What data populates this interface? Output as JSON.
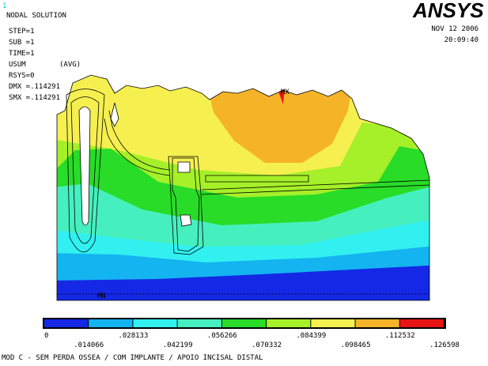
{
  "window_number": "1",
  "header": {
    "title": "NODAL SOLUTION",
    "lines": [
      "STEP=1",
      "SUB =1",
      "TIME=1",
      "USUM",
      "RSYS=0",
      "DMX =.114291",
      "SMX =.114291"
    ],
    "avg": "(AVG)"
  },
  "logo": "ANSYS",
  "date": "NOV 12 2006",
  "time": "20:09:40",
  "markers": {
    "max": "MX",
    "min": "MN"
  },
  "legend": {
    "colors": [
      "#1428e6",
      "#14b4f0",
      "#32f0f0",
      "#46f0be",
      "#28dc28",
      "#a5f028",
      "#f5f050",
      "#f5b428",
      "#e61414"
    ],
    "labels": [
      "0",
      ".014066",
      ".028133",
      ".042199",
      ".056266",
      ".070332",
      ".084399",
      ".098465",
      ".112532",
      ".126598"
    ]
  },
  "caption": "MOD C - SEM PERDA OSSEA / COM IMPLANTE / APOIO INCISAL DISTAL"
}
